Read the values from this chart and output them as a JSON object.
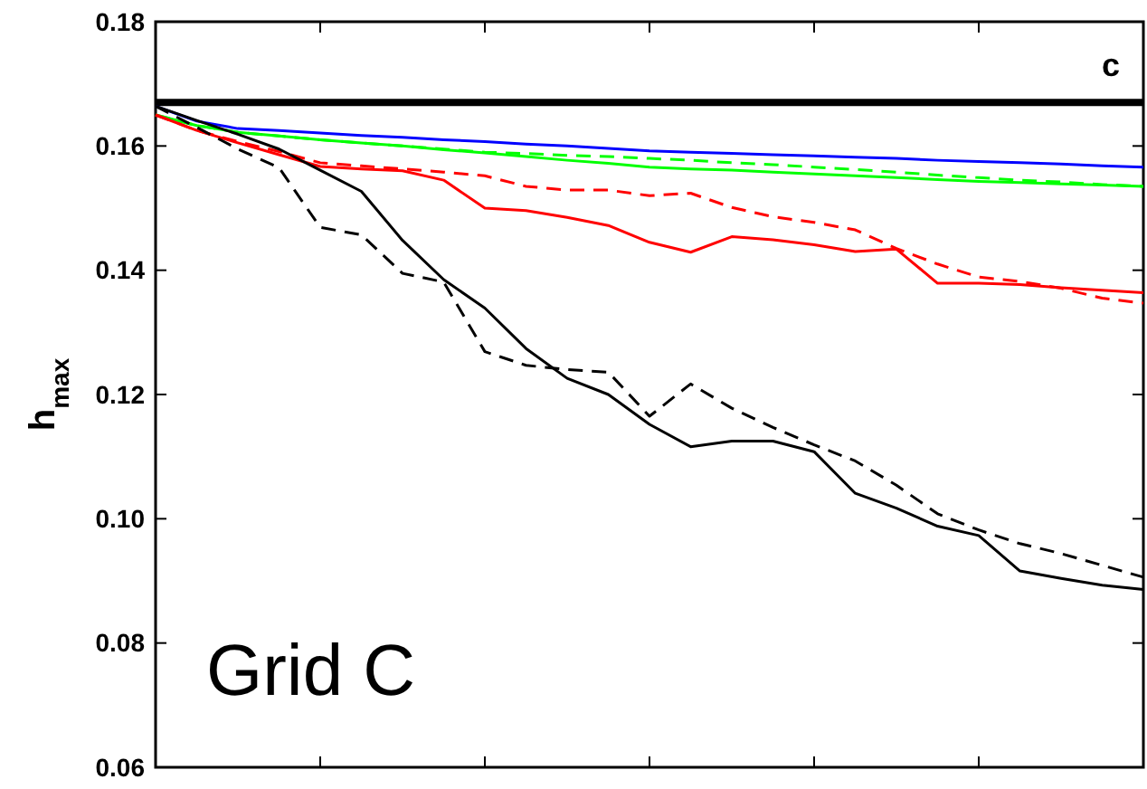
{
  "chart_data": {
    "type": "line",
    "ylabel": "h$_{max}$",
    "categories": [
      null,
      null,
      null,
      null,
      null,
      null,
      null,
      null,
      null,
      null,
      null,
      null,
      null,
      null,
      null,
      null,
      null,
      null,
      null,
      null,
      null,
      null,
      null,
      null,
      null
    ],
    "ylim": [
      0.06,
      0.18
    ],
    "yticks": [
      {
        "value": 0.06,
        "label": "0.06"
      },
      {
        "value": 0.08,
        "label": "0.08"
      },
      {
        "value": 0.1,
        "label": "0.10"
      },
      {
        "value": 0.12,
        "label": "0.12"
      },
      {
        "value": 0.14,
        "label": "0.14"
      },
      {
        "value": 0.16,
        "label": "0.16"
      },
      {
        "value": 0.18,
        "label": "0.18"
      }
    ],
    "grid": false,
    "annotations": [
      "c",
      "Grid C"
    ],
    "ref_lines": [
      {
        "axis": "y",
        "value": 0.167,
        "color": "#000000"
      }
    ],
    "series": [
      {
        "color": "#0000ff",
        "line_style": "solid",
        "values": [
          0.1664,
          0.164,
          0.1628,
          0.1625,
          0.1621,
          0.1617,
          0.1614,
          0.161,
          0.1607,
          0.1603,
          0.16,
          0.1596,
          0.1592,
          0.159,
          0.1588,
          0.1586,
          0.1584,
          0.1582,
          0.158,
          0.1577,
          0.1575,
          0.1573,
          0.1571,
          0.1568,
          0.1566
        ]
      },
      {
        "color": "#00ff00",
        "line_style": "solid",
        "values": [
          0.165,
          0.1633,
          0.1622,
          0.1616,
          0.161,
          0.1605,
          0.16,
          0.1594,
          0.1589,
          0.1583,
          0.1577,
          0.1572,
          0.1566,
          0.1563,
          0.1561,
          0.1558,
          0.1555,
          0.1552,
          0.1549,
          0.1546,
          0.1543,
          0.1541,
          0.1539,
          0.1537,
          0.1535
        ]
      },
      {
        "color": "#00ff00",
        "line_style": "dashed",
        "values": [
          0.165,
          0.1633,
          0.1622,
          0.1616,
          0.161,
          0.1605,
          0.16,
          0.1595,
          0.159,
          0.1588,
          0.1585,
          0.1583,
          0.158,
          0.1577,
          0.1573,
          0.157,
          0.1566,
          0.1562,
          0.1558,
          0.1553,
          0.1549,
          0.1545,
          0.1542,
          0.1538,
          0.1535
        ]
      },
      {
        "color": "#ff0000",
        "line_style": "solid",
        "values": [
          0.165,
          0.1625,
          0.1605,
          0.1586,
          0.1567,
          0.1563,
          0.156,
          0.1545,
          0.15,
          0.1496,
          0.1485,
          0.1472,
          0.1445,
          0.1429,
          0.1454,
          0.1449,
          0.1441,
          0.143,
          0.1434,
          0.1379,
          0.1379,
          0.1377,
          0.1372,
          0.1368,
          0.1364
        ]
      },
      {
        "color": "#ff0000",
        "line_style": "dashed",
        "values": [
          0.165,
          0.1625,
          0.1607,
          0.1591,
          0.1573,
          0.1568,
          0.1563,
          0.1558,
          0.1552,
          0.1535,
          0.1529,
          0.1529,
          0.152,
          0.1524,
          0.1501,
          0.1486,
          0.1477,
          0.1465,
          0.1435,
          0.141,
          0.1389,
          0.1382,
          0.1371,
          0.1355,
          0.1347
        ]
      },
      {
        "color": "#000000",
        "line_style": "solid",
        "values": [
          0.1664,
          0.1641,
          0.1619,
          0.1595,
          0.1561,
          0.1527,
          0.1448,
          0.1385,
          0.1339,
          0.1274,
          0.1226,
          0.12,
          0.1152,
          0.1116,
          0.1125,
          0.1125,
          0.1108,
          0.1041,
          0.1017,
          0.0988,
          0.0973,
          0.0916,
          0.0904,
          0.0893,
          0.0886
        ]
      },
      {
        "color": "#000000",
        "line_style": "dashed",
        "values": [
          0.1664,
          0.163,
          0.1595,
          0.1565,
          0.1469,
          0.1457,
          0.1395,
          0.1381,
          0.1269,
          0.1247,
          0.124,
          0.1236,
          0.1165,
          0.1217,
          0.1178,
          0.1147,
          0.1119,
          0.1093,
          0.1054,
          0.1008,
          0.0982,
          0.096,
          0.0944,
          0.0925,
          0.0906
        ]
      }
    ]
  }
}
